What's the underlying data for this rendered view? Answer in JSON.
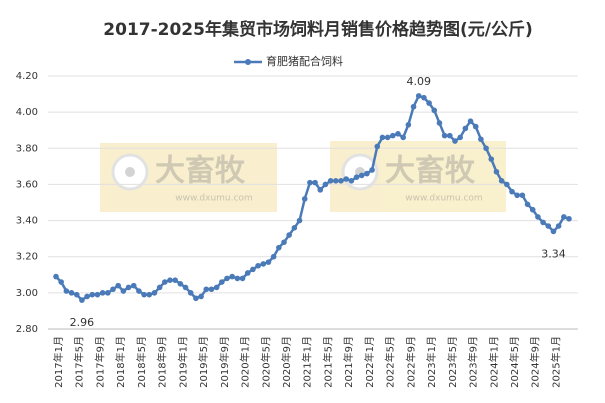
{
  "chart_data": {
    "type": "line",
    "title": "2017-2025年集贸市场饲料月销售价格趋势图(元/公斤)",
    "categories": [
      "2017年1月",
      null,
      null,
      null,
      "2017年5月",
      null,
      null,
      null,
      "2017年9月",
      null,
      null,
      null,
      "2018年1月",
      null,
      null,
      null,
      "2018年5月",
      null,
      null,
      null,
      "2018年9月",
      null,
      null,
      null,
      "2019年1月",
      null,
      null,
      null,
      "2019年5月",
      null,
      null,
      null,
      "2019年9月",
      null,
      null,
      null,
      "2020年1月",
      null,
      null,
      null,
      "2020年5月",
      null,
      null,
      null,
      "2020年9月",
      null,
      null,
      null,
      "2021年1月",
      null,
      null,
      null,
      "2021年5月",
      null,
      null,
      null,
      "2021年9月",
      null,
      null,
      null,
      "2022年1月",
      null,
      null,
      null,
      "2022年5月",
      null,
      null,
      null,
      "2022年9月",
      null,
      null,
      null,
      "2023年1月",
      null,
      null,
      null,
      "2023年5月",
      null,
      null,
      null,
      "2023年9月",
      null,
      null,
      null,
      "2024年1月",
      null,
      null,
      null,
      "2024年5月",
      null,
      null,
      null,
      "2024年9月",
      null,
      null,
      null,
      "2025年1月",
      null,
      null,
      null
    ],
    "series": [
      {
        "name": "育肥猪配合饲料",
        "color": "#4a7ab8",
        "values": [
          3.09,
          3.06,
          3.01,
          3.0,
          2.99,
          2.96,
          2.98,
          2.99,
          2.99,
          3.0,
          3.0,
          3.02,
          3.04,
          3.01,
          3.03,
          3.04,
          3.01,
          2.99,
          2.99,
          3.0,
          3.03,
          3.06,
          3.07,
          3.07,
          3.05,
          3.03,
          3.0,
          2.97,
          2.98,
          3.02,
          3.02,
          3.03,
          3.06,
          3.08,
          3.09,
          3.08,
          3.08,
          3.11,
          3.13,
          3.15,
          3.16,
          3.17,
          3.2,
          3.25,
          3.28,
          3.32,
          3.36,
          3.4,
          3.52,
          3.61,
          3.61,
          3.57,
          3.6,
          3.62,
          3.62,
          3.62,
          3.63,
          3.62,
          3.64,
          3.65,
          3.66,
          3.68,
          3.81,
          3.86,
          3.86,
          3.87,
          3.88,
          3.86,
          3.93,
          4.03,
          4.09,
          4.08,
          4.05,
          4.01,
          3.94,
          3.87,
          3.87,
          3.84,
          3.86,
          3.91,
          3.95,
          3.92,
          3.85,
          3.8,
          3.74,
          3.67,
          3.62,
          3.6,
          3.56,
          3.54,
          3.54,
          3.49,
          3.46,
          3.42,
          3.39,
          3.37,
          3.34,
          3.37,
          3.42,
          3.41
        ],
        "value_labels": [
          null,
          null,
          null,
          null,
          null,
          "2.96",
          null,
          null,
          null,
          null,
          null,
          null,
          null,
          null,
          null,
          null,
          null,
          null,
          null,
          null,
          null,
          null,
          null,
          null,
          null,
          null,
          null,
          null,
          null,
          null,
          null,
          null,
          null,
          null,
          null,
          null,
          null,
          null,
          null,
          null,
          null,
          null,
          null,
          null,
          null,
          null,
          null,
          null,
          null,
          null,
          null,
          null,
          null,
          null,
          null,
          null,
          null,
          null,
          null,
          null,
          null,
          null,
          null,
          null,
          null,
          null,
          null,
          null,
          null,
          null,
          "4.09",
          null,
          null,
          null,
          null,
          null,
          null,
          null,
          null,
          null,
          null,
          null,
          null,
          null,
          null,
          null,
          null,
          null,
          null,
          null,
          null,
          null,
          null,
          null,
          null,
          null,
          "3.34",
          null,
          null,
          null
        ]
      }
    ],
    "ylim": [
      2.8,
      4.2
    ],
    "yticks": [
      {
        "value": 2.8,
        "label": "2.80"
      },
      {
        "value": 3.0,
        "label": "3.00"
      },
      {
        "value": 3.2,
        "label": "3.20"
      },
      {
        "value": 3.4,
        "label": "3.40"
      },
      {
        "value": 3.6,
        "label": "3.60"
      },
      {
        "value": 3.8,
        "label": "3.80"
      },
      {
        "value": 4.0,
        "label": "4.00"
      },
      {
        "value": 4.2,
        "label": "4.20"
      }
    ],
    "grid": true,
    "legend": "top",
    "watermarks": [
      "大畜牧",
      "www.dxumu.com"
    ]
  }
}
